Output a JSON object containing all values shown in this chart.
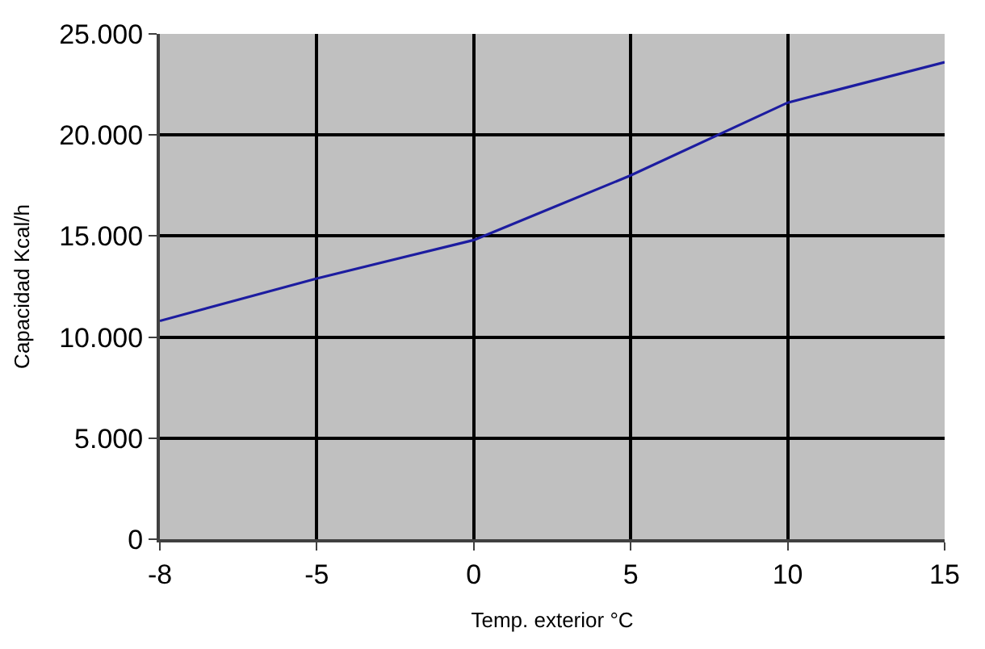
{
  "chart_data": {
    "type": "line",
    "xlabel": "Temp. exterior °C",
    "ylabel": "Capacidad Kcal/h",
    "categories": [
      "-8",
      "-5",
      "0",
      "5",
      "10",
      "15"
    ],
    "series": [
      {
        "color": "#1c1ca0",
        "values": [
          10800,
          12900,
          14800,
          18000,
          21600,
          23600
        ]
      }
    ],
    "ylim": [
      0,
      25000
    ],
    "yticks": [
      {
        "value": 0,
        "label": "0"
      },
      {
        "value": 5000,
        "label": "5.000"
      },
      {
        "value": 10000,
        "label": "10.000"
      },
      {
        "value": 15000,
        "label": "15.000"
      },
      {
        "value": 20000,
        "label": "20.000"
      },
      {
        "value": 25000,
        "label": "25.000"
      }
    ],
    "grid": true,
    "marker": "none",
    "line_style": "solid"
  }
}
